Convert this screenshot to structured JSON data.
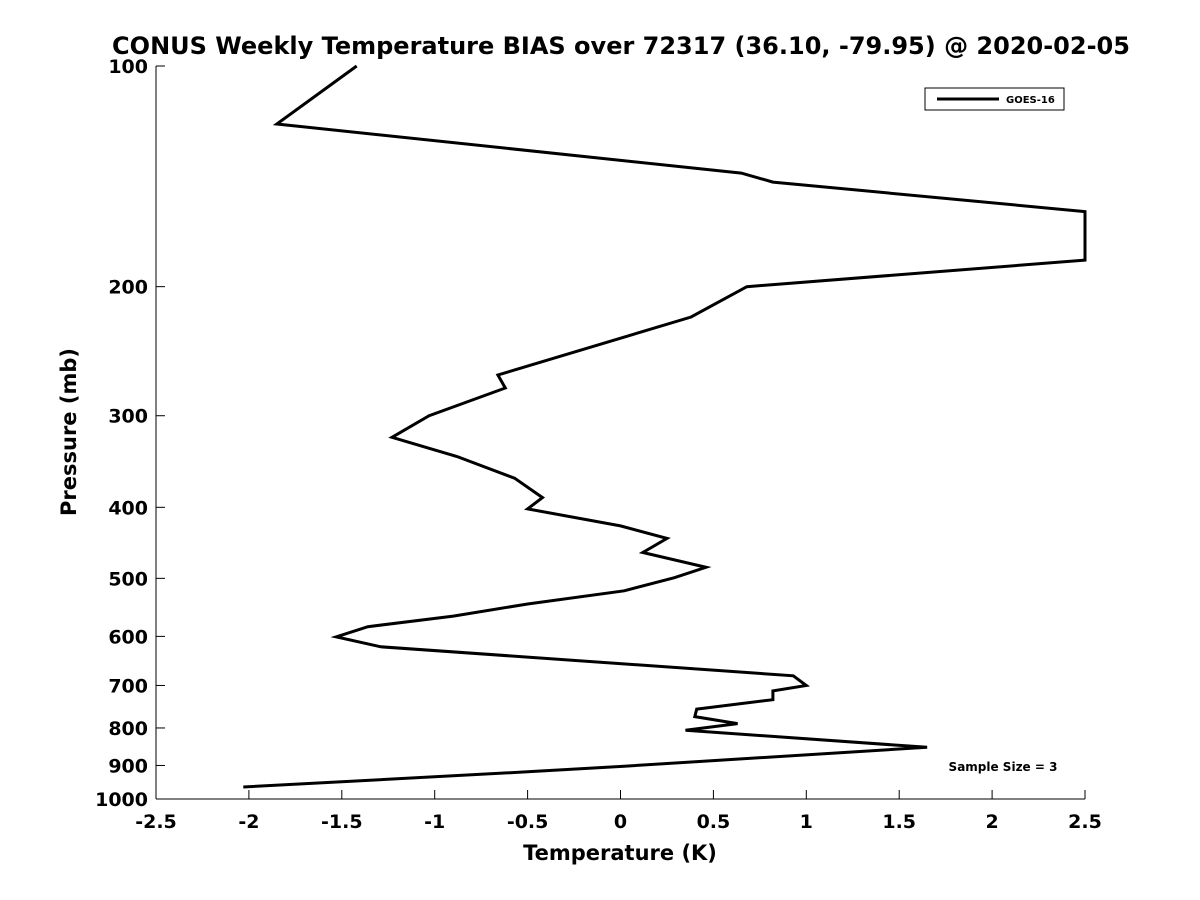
{
  "chart_data": {
    "type": "line",
    "title": "CONUS Weekly Temperature BIAS over 72317 (36.10, -79.95) @ 2020-02-05",
    "xlabel": "Temperature (K)",
    "ylabel": "Pressure (mb)",
    "xlim": [
      -2.5,
      2.5
    ],
    "ylim": [
      100,
      1000
    ],
    "y_scale": "log",
    "y_direction": "reversed",
    "xticks": [
      "-2.5",
      "-2",
      "-1.5",
      "-1",
      "-0.5",
      "0",
      "0.5",
      "1",
      "1.5",
      "2",
      "2.5"
    ],
    "xtick_values": [
      -2.5,
      -2,
      -1.5,
      -1,
      -0.5,
      0,
      0.5,
      1,
      1.5,
      2,
      2.5
    ],
    "yticks": [
      "100",
      "200",
      "300",
      "400",
      "500",
      "600",
      "700",
      "800",
      "900",
      "1000"
    ],
    "ytick_values": [
      100,
      200,
      300,
      400,
      500,
      600,
      700,
      800,
      900,
      1000
    ],
    "grid": false,
    "legend_position": "top-right",
    "annotation": "Sample Size = 3",
    "series": [
      {
        "name": "GOES-16",
        "color": "#000000",
        "points": [
          {
            "x": -1.42,
            "p": 100
          },
          {
            "x": -1.85,
            "p": 120
          },
          {
            "x": 0.65,
            "p": 140
          },
          {
            "x": 0.82,
            "p": 144
          },
          {
            "x": 2.5,
            "p": 158
          },
          {
            "x": 2.5,
            "p": 184
          },
          {
            "x": 0.68,
            "p": 200
          },
          {
            "x": 0.38,
            "p": 220
          },
          {
            "x": -0.66,
            "p": 264
          },
          {
            "x": -0.62,
            "p": 275
          },
          {
            "x": -1.03,
            "p": 300
          },
          {
            "x": -1.23,
            "p": 321
          },
          {
            "x": -0.88,
            "p": 341
          },
          {
            "x": -0.57,
            "p": 365
          },
          {
            "x": -0.42,
            "p": 388
          },
          {
            "x": -0.5,
            "p": 402
          },
          {
            "x": 0.0,
            "p": 424
          },
          {
            "x": 0.25,
            "p": 441
          },
          {
            "x": 0.12,
            "p": 461
          },
          {
            "x": 0.46,
            "p": 483
          },
          {
            "x": 0.29,
            "p": 499
          },
          {
            "x": 0.02,
            "p": 520
          },
          {
            "x": -0.5,
            "p": 542
          },
          {
            "x": -0.9,
            "p": 563
          },
          {
            "x": -1.36,
            "p": 582
          },
          {
            "x": -1.53,
            "p": 601
          },
          {
            "x": -1.29,
            "p": 620
          },
          {
            "x": 0.93,
            "p": 679
          },
          {
            "x": 1.0,
            "p": 700
          },
          {
            "x": 0.82,
            "p": 712
          },
          {
            "x": 0.82,
            "p": 732
          },
          {
            "x": 0.41,
            "p": 754
          },
          {
            "x": 0.4,
            "p": 772
          },
          {
            "x": 0.63,
            "p": 789
          },
          {
            "x": 0.35,
            "p": 806
          },
          {
            "x": 1.65,
            "p": 850
          },
          {
            "x": 0.02,
            "p": 902
          },
          {
            "x": -0.5,
            "p": 918
          },
          {
            "x": -2.03,
            "p": 963
          }
        ]
      }
    ]
  }
}
